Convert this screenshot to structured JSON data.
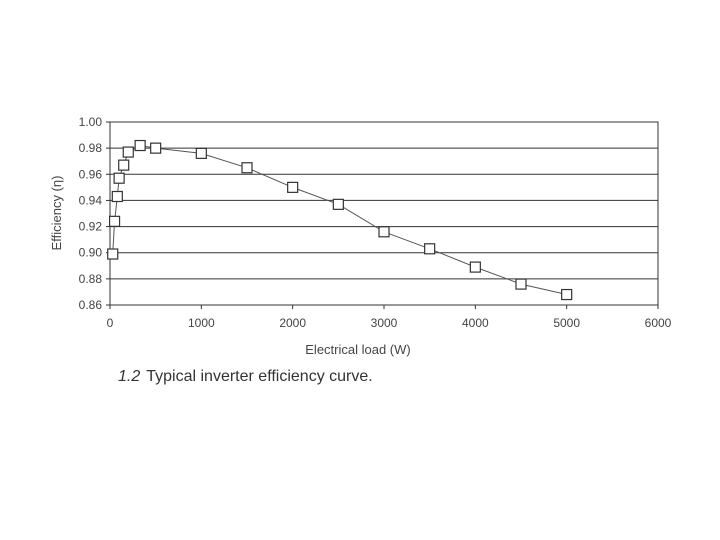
{
  "caption": {
    "number": "1.2",
    "text": "Typical inverter efficiency curve."
  },
  "chart_data": {
    "type": "scatter",
    "title": "",
    "xlabel": "Electrical load (W)",
    "ylabel": "Efficiency (η)",
    "xlim": [
      0,
      6000
    ],
    "ylim": [
      0.86,
      1.0
    ],
    "xticks": [
      0,
      1000,
      2000,
      3000,
      4000,
      5000,
      6000
    ],
    "yticks": [
      0.86,
      0.88,
      0.9,
      0.92,
      0.94,
      0.96,
      0.98,
      1.0
    ],
    "xtick_labels": [
      "0",
      "1000",
      "2000",
      "3000",
      "4000",
      "5000",
      "6000"
    ],
    "ytick_labels": [
      "0.86",
      "0.88",
      "0.90",
      "0.92",
      "0.94",
      "0.96",
      "0.98",
      "1.00"
    ],
    "grid": "horizontal",
    "marker": "open-square",
    "connected_by_line": true,
    "series": [
      {
        "x": [
          30,
          50,
          80,
          100,
          150,
          200,
          330,
          500,
          1000,
          1500,
          2000,
          2500,
          3000,
          3500,
          4000,
          4500,
          5000
        ],
        "y": [
          0.899,
          0.924,
          0.943,
          0.957,
          0.967,
          0.977,
          0.982,
          0.98,
          0.976,
          0.965,
          0.95,
          0.937,
          0.916,
          0.903,
          0.889,
          0.876,
          0.868
        ]
      }
    ]
  }
}
